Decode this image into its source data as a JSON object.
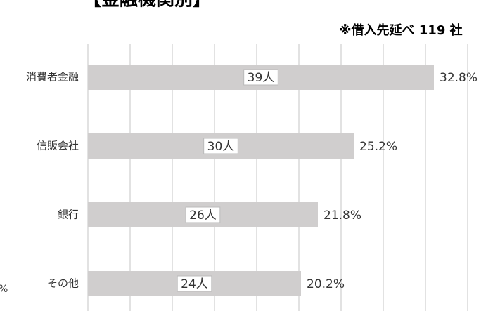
{
  "chart_data": {
    "type": "hbar",
    "title": "【金融機関別】",
    "subtitle": "※借入先延べ 119 社",
    "annotation": "%",
    "categories": [
      "消費者金融",
      "信販会社",
      "銀行",
      "その他"
    ],
    "values": [
      32.8,
      25.2,
      21.8,
      20.2
    ],
    "value_labels": [
      "32.8%",
      "25.2%",
      "21.8%",
      "20.2%"
    ],
    "count_labels": [
      "39人",
      "30人",
      "26人",
      "24人"
    ],
    "color": "#d0cece",
    "xlim": [
      0,
      38
    ],
    "xticks": [
      0,
      4,
      8,
      12,
      16,
      20,
      24,
      28,
      32,
      36
    ],
    "grid": true
  }
}
